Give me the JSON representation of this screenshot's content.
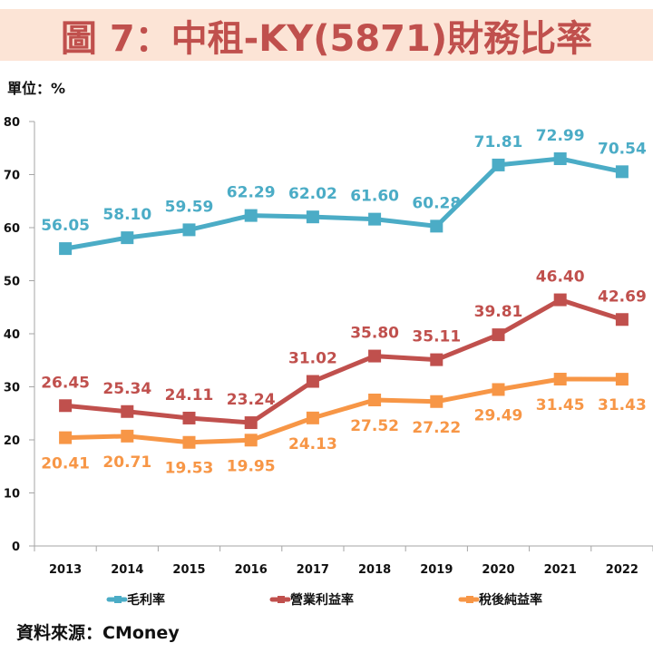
{
  "title": "圖 7：中租-KY(5871)財務比率",
  "unit_label": "單位：%",
  "source_label": "資料來源：CMoney",
  "colors": {
    "title_text": "#C0504D",
    "title_background": "#FCE4D6",
    "axis": "#A6A6A6"
  },
  "chart_data": {
    "type": "line",
    "title": "圖 7：中租-KY(5871)財務比率",
    "xlabel": "",
    "ylabel": "單位：%",
    "categories": [
      "2013",
      "2014",
      "2015",
      "2016",
      "2017",
      "2018",
      "2019",
      "2020",
      "2021",
      "2022"
    ],
    "ylim": [
      0,
      80
    ],
    "yticks": [
      "0",
      "10",
      "20",
      "30",
      "40",
      "50",
      "60",
      "70",
      "80"
    ],
    "ytick_values": [
      0,
      10,
      20,
      30,
      40,
      50,
      60,
      70,
      80
    ],
    "grid": false,
    "legend_position": "bottom",
    "series": [
      {
        "name": "毛利率",
        "color": "#4BACC6",
        "label_position": "above",
        "values": [
          56.05,
          58.1,
          59.59,
          62.29,
          62.02,
          61.6,
          60.28,
          71.81,
          72.99,
          70.54
        ],
        "labels": [
          "56.05",
          "58.10",
          "59.59",
          "62.29",
          "62.02",
          "61.60",
          "60.28",
          "71.81",
          "72.99",
          "70.54"
        ]
      },
      {
        "name": "營業利益率",
        "color": "#C0504D",
        "label_position": "above",
        "values": [
          26.45,
          25.34,
          24.11,
          23.24,
          31.02,
          35.8,
          35.11,
          39.81,
          46.4,
          42.69
        ],
        "labels": [
          "26.45",
          "25.34",
          "24.11",
          "23.24",
          "31.02",
          "35.80",
          "35.11",
          "39.81",
          "46.40",
          "42.69"
        ]
      },
      {
        "name": "稅後純益率",
        "color": "#F79646",
        "label_position": "below",
        "values": [
          20.41,
          20.71,
          19.53,
          19.95,
          24.13,
          27.52,
          27.22,
          29.49,
          31.45,
          31.43
        ],
        "labels": [
          "20.41",
          "20.71",
          "19.53",
          "19.95",
          "24.13",
          "27.52",
          "27.22",
          "29.49",
          "31.45",
          "31.43"
        ]
      }
    ]
  }
}
